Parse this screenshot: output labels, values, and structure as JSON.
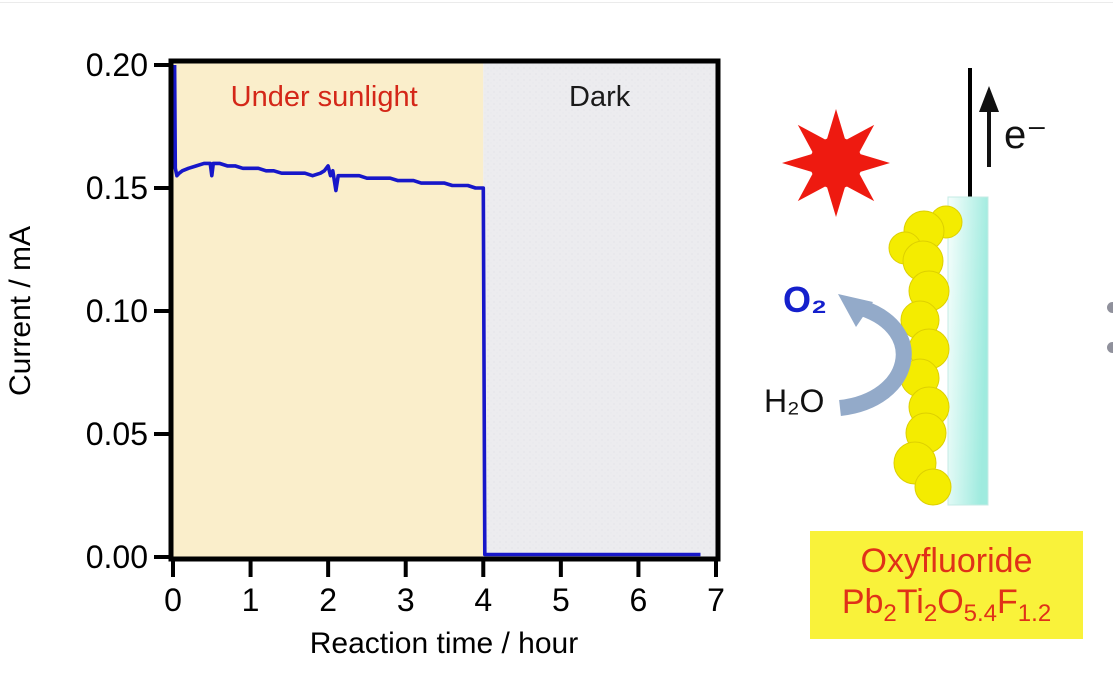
{
  "chart_data": {
    "type": "line",
    "title": "",
    "xlabel": "Reaction time / hour",
    "ylabel": "Current / mA",
    "xlim": [
      0,
      7
    ],
    "ylim": [
      0.0,
      0.2
    ],
    "grid": false,
    "legend": null,
    "x_ticks": [
      0,
      1,
      2,
      3,
      4,
      5,
      6,
      7
    ],
    "y_ticks": [
      {
        "v": 0.0,
        "label": "0.00"
      },
      {
        "v": 0.05,
        "label": "0.05"
      },
      {
        "v": 0.1,
        "label": "0.10"
      },
      {
        "v": 0.15,
        "label": "0.15"
      },
      {
        "v": 0.2,
        "label": "0.20"
      }
    ],
    "regions": [
      {
        "label": "Under sunlight",
        "x_start": 0,
        "x_end": 4,
        "fill": "#faeecb",
        "label_color": "#d42718"
      },
      {
        "label": "Dark",
        "x_start": 4,
        "x_end": 7,
        "fill": "#ececef",
        "label_color": "#1a1a1a"
      }
    ],
    "series": [
      {
        "name": "photocurrent",
        "color": "#1717c9",
        "points": [
          [
            0.02,
            0.2
          ],
          [
            0.03,
            0.158
          ],
          [
            0.05,
            0.155
          ],
          [
            0.08,
            0.156
          ],
          [
            0.12,
            0.157
          ],
          [
            0.2,
            0.158
          ],
          [
            0.3,
            0.159
          ],
          [
            0.4,
            0.16
          ],
          [
            0.48,
            0.16
          ],
          [
            0.5,
            0.155
          ],
          [
            0.52,
            0.16
          ],
          [
            0.6,
            0.16
          ],
          [
            0.7,
            0.159
          ],
          [
            0.8,
            0.159
          ],
          [
            0.9,
            0.158
          ],
          [
            1.0,
            0.158
          ],
          [
            1.1,
            0.158
          ],
          [
            1.2,
            0.157
          ],
          [
            1.3,
            0.157
          ],
          [
            1.4,
            0.156
          ],
          [
            1.5,
            0.156
          ],
          [
            1.6,
            0.156
          ],
          [
            1.7,
            0.156
          ],
          [
            1.8,
            0.155
          ],
          [
            1.9,
            0.156
          ],
          [
            1.95,
            0.157
          ],
          [
            2.0,
            0.159
          ],
          [
            2.03,
            0.155
          ],
          [
            2.06,
            0.157
          ],
          [
            2.1,
            0.149
          ],
          [
            2.13,
            0.155
          ],
          [
            2.2,
            0.155
          ],
          [
            2.3,
            0.155
          ],
          [
            2.4,
            0.155
          ],
          [
            2.5,
            0.154
          ],
          [
            2.6,
            0.154
          ],
          [
            2.7,
            0.154
          ],
          [
            2.8,
            0.154
          ],
          [
            2.9,
            0.153
          ],
          [
            3.0,
            0.153
          ],
          [
            3.1,
            0.153
          ],
          [
            3.2,
            0.152
          ],
          [
            3.3,
            0.152
          ],
          [
            3.4,
            0.152
          ],
          [
            3.5,
            0.152
          ],
          [
            3.6,
            0.151
          ],
          [
            3.7,
            0.151
          ],
          [
            3.8,
            0.151
          ],
          [
            3.9,
            0.15
          ],
          [
            4.0,
            0.15
          ],
          [
            4.02,
            0.001
          ],
          [
            6.8,
            0.001
          ]
        ]
      }
    ]
  },
  "diagram": {
    "electron_label": "e⁻",
    "o2_label": "O₂",
    "h2o_label": "H₂O",
    "caption_line1": "Oxyfluoride",
    "formula_segments": [
      {
        "text": "Pb"
      },
      {
        "sub": "2"
      },
      {
        "text": "Ti"
      },
      {
        "sub": "2"
      },
      {
        "text": "O"
      },
      {
        "sub": "5.4"
      },
      {
        "text": "F"
      },
      {
        "sub": "1.2"
      }
    ],
    "colors": {
      "sun": "#ee1a10",
      "wire": "#000000",
      "electron_arrow": "#111111",
      "electrode_light": "#f5fefc",
      "electrode_dark": "#9febdf",
      "particle": "#f4ec00",
      "particle_edge": "#ddd000",
      "reaction_arrow": "#93aac9",
      "o2_text": "#1520cc",
      "caption_bg": "#f9f23a",
      "caption_text": "#e03118"
    }
  }
}
